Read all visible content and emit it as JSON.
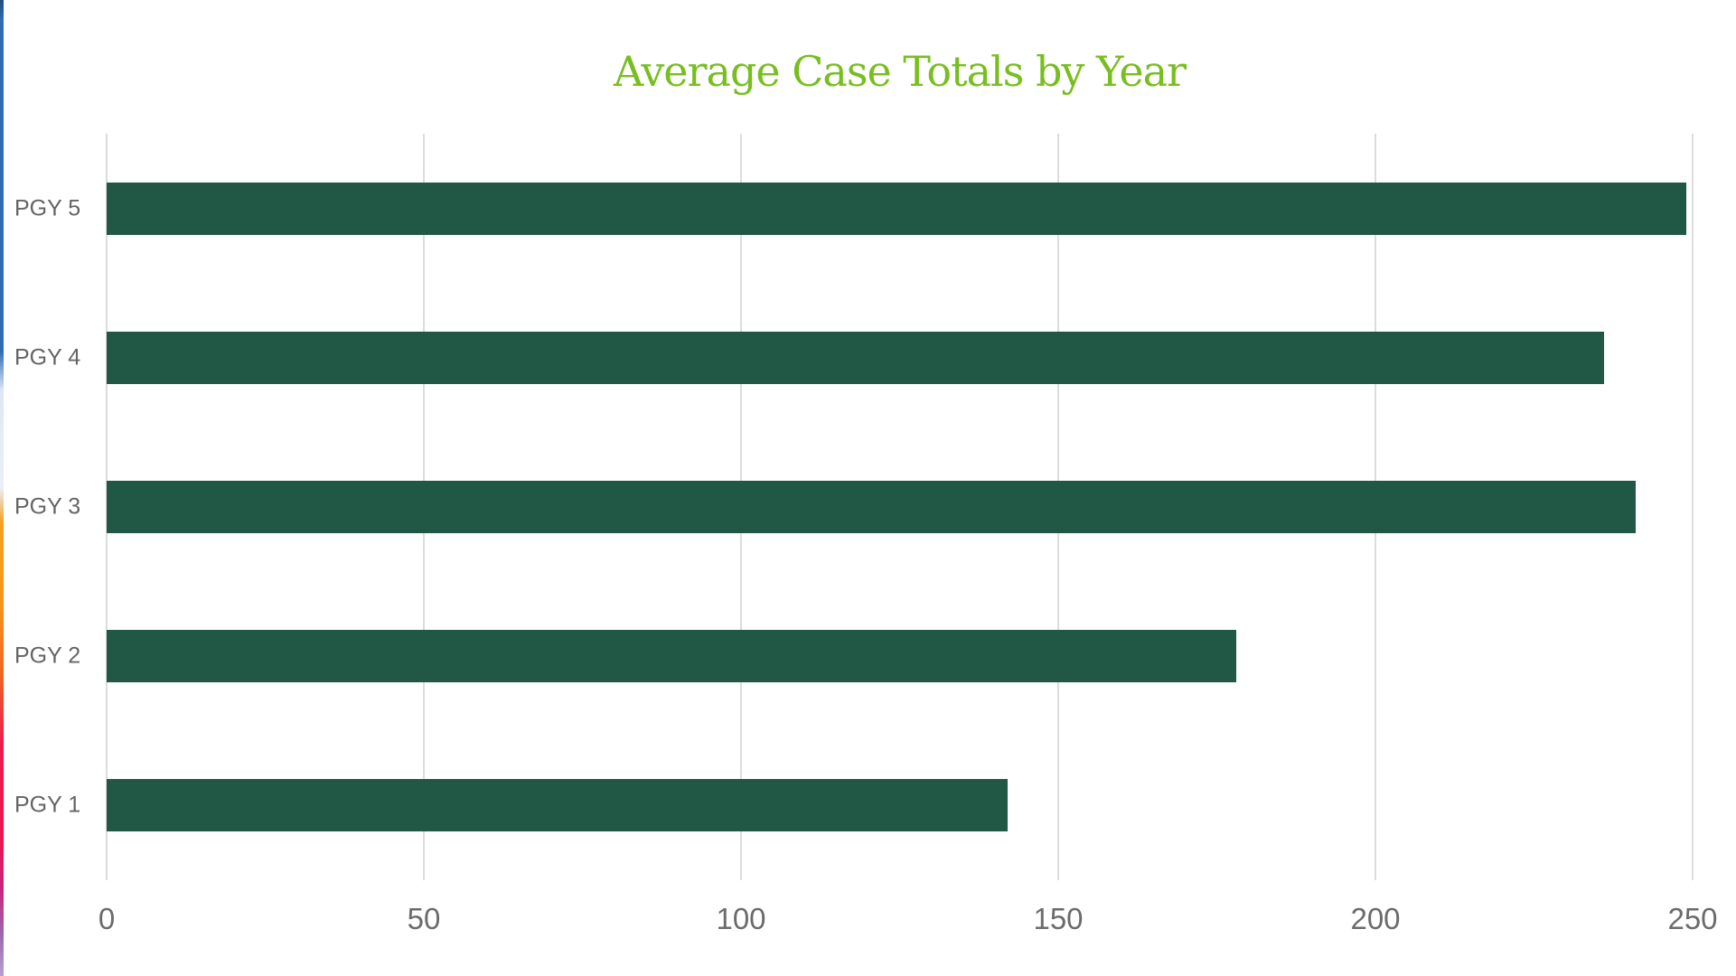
{
  "title": "Average Case Totals by Year",
  "colors": {
    "title_green": "#78BE20",
    "bar_green": "#215845",
    "gridline_gray": "#dcdcdc",
    "category_label_gray": "#646464",
    "tick_label_gray": "#6b6b6b",
    "edge_strip_gradient": [
      "#1f4e79",
      "#2e6db4",
      "#e9eff8",
      "#f7941e",
      "#ed1650",
      "#b5a1cf"
    ]
  },
  "chart_data": {
    "type": "bar",
    "orientation": "horizontal",
    "title": "Average Case Totals by Year",
    "categories": [
      "PGY 5",
      "PGY 4",
      "PGY 3",
      "PGY 2",
      "PGY 1"
    ],
    "values": [
      249,
      236,
      241,
      178,
      142
    ],
    "xlabel": "",
    "ylabel": "",
    "xlim": [
      0,
      250
    ],
    "x_ticks": [
      0,
      50,
      100,
      150,
      200,
      250
    ],
    "grid": true,
    "legend": false
  }
}
